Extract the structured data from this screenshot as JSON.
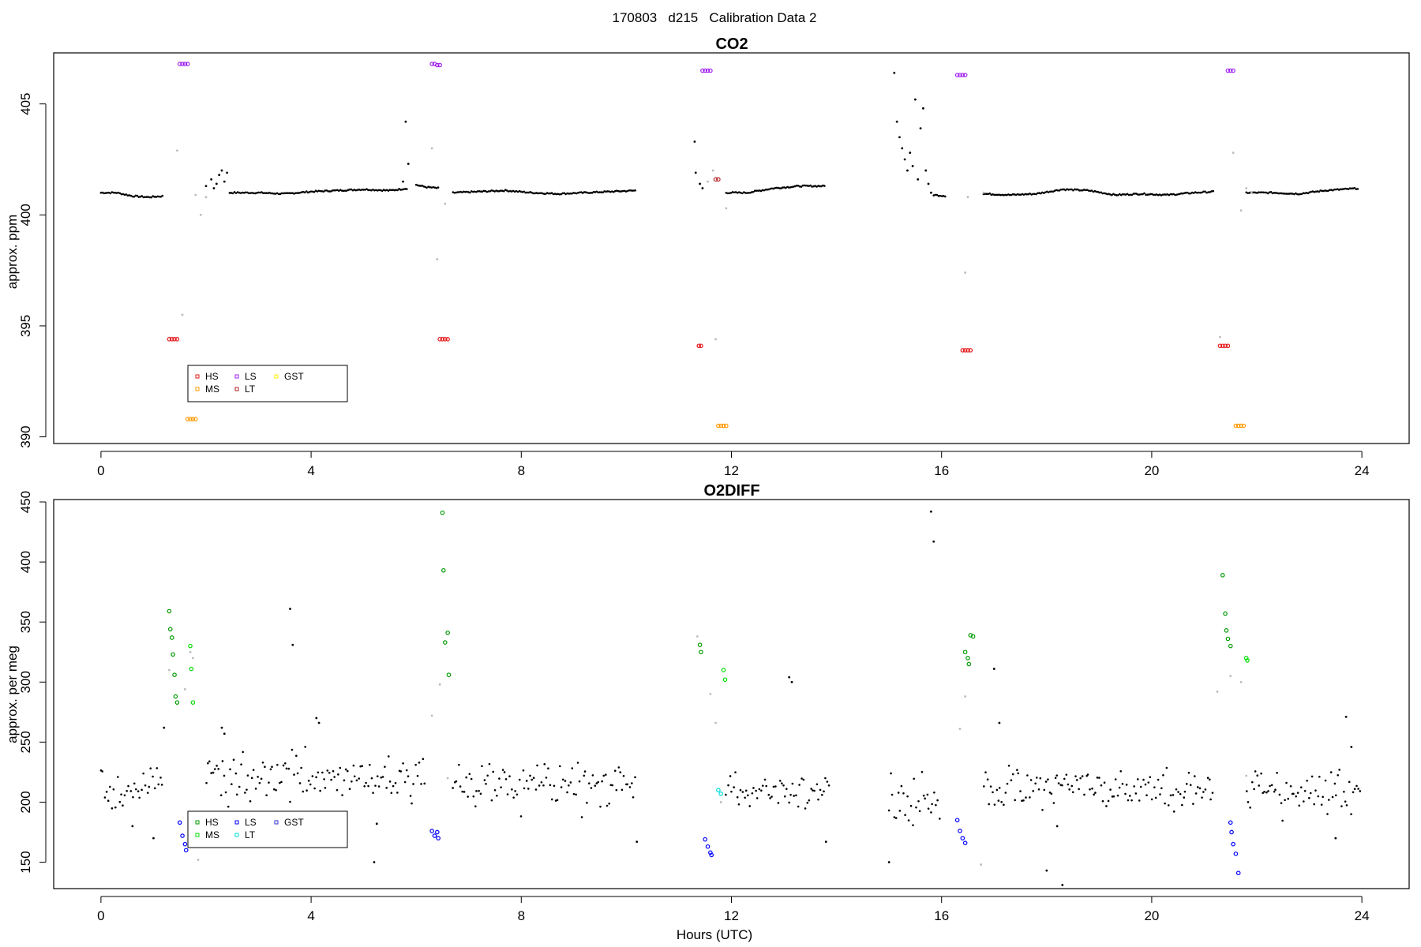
{
  "figure": {
    "title": "170803   d215   Calibration Data 2",
    "xlabel": "Hours (UTC)"
  },
  "colors": {
    "ambient": "#000000",
    "ambient_faint": "#bbbbbb",
    "HS": "#e41a1c",
    "MS": "#ff9900",
    "LS": "#a020f0",
    "LT": "#b22222",
    "GST": "#ffee00",
    "O2_HS": "#009900",
    "O2_MS": "#00dd00",
    "O2_LS": "#0000ff",
    "O2_LT": "#00dddd",
    "O2_GST": "#3333cc"
  },
  "chart_data": [
    {
      "type": "scatter",
      "title": "CO2",
      "xlabel": "",
      "ylabel": "approx. ppm",
      "xlim": [
        -0.9,
        24.9
      ],
      "ylim": [
        389.7,
        407.3
      ],
      "xticks": [
        0,
        4,
        8,
        12,
        16,
        20,
        24
      ],
      "yticks": [
        390,
        395,
        400,
        405
      ],
      "grid": false,
      "legend": {
        "placement": "bottom-left",
        "entries": [
          "HS",
          "LS",
          "GST",
          "MS",
          "LT"
        ]
      },
      "ambient_segments": [
        {
          "x": [
            0.0,
            0.3,
            0.6,
            0.9,
            1.2
          ],
          "y": [
            401.0,
            401.0,
            400.85,
            400.8,
            400.85
          ]
        },
        {
          "x": [
            2.45,
            3.0,
            3.5,
            4.0,
            4.5,
            5.0,
            5.5,
            5.85
          ],
          "y": [
            401.0,
            401.0,
            400.95,
            401.05,
            401.1,
            401.15,
            401.1,
            401.2
          ]
        },
        {
          "x": [
            6.0,
            6.2,
            6.45
          ],
          "y": [
            401.35,
            401.25,
            401.2
          ]
        },
        {
          "x": [
            6.7,
            7.2,
            7.7,
            8.2,
            8.7,
            9.2,
            9.7,
            10.2
          ],
          "y": [
            401.0,
            401.05,
            401.1,
            401.0,
            400.95,
            401.0,
            401.05,
            401.1
          ]
        },
        {
          "x": [
            11.9,
            12.3,
            12.8,
            13.3,
            13.8
          ],
          "y": [
            401.0,
            401.0,
            401.2,
            401.3,
            401.3
          ]
        },
        {
          "x": [
            15.85,
            16.1
          ],
          "y": [
            400.9,
            400.85
          ]
        },
        {
          "x": [
            16.8,
            17.3,
            17.8,
            18.3,
            18.8,
            19.3,
            19.8,
            20.3,
            20.8,
            21.2
          ],
          "y": [
            400.95,
            400.9,
            400.95,
            401.15,
            401.1,
            400.9,
            400.95,
            400.9,
            401.0,
            401.05
          ]
        },
        {
          "x": [
            21.8,
            22.3,
            22.8,
            23.3,
            23.95
          ],
          "y": [
            401.0,
            401.0,
            400.95,
            401.1,
            401.2
          ]
        }
      ],
      "ambient_scatter": {
        "x": [
          2.0,
          2.1,
          2.15,
          2.2,
          2.25,
          2.3,
          2.35,
          2.4,
          5.75,
          5.8,
          5.85,
          11.3,
          11.32,
          11.4,
          11.45,
          15.1,
          15.15,
          15.2,
          15.25,
          15.3,
          15.35,
          15.4,
          15.45,
          15.5,
          15.55,
          15.6,
          15.65,
          15.7,
          15.75,
          15.8
        ],
        "y": [
          401.3,
          401.6,
          401.2,
          401.4,
          401.8,
          402.0,
          401.5,
          401.9,
          401.5,
          404.2,
          402.3,
          403.3,
          401.9,
          401.4,
          401.2,
          406.4,
          404.2,
          403.5,
          403.0,
          402.5,
          402.0,
          402.8,
          402.2,
          405.2,
          401.6,
          403.9,
          404.8,
          402.0,
          401.4,
          401.0
        ]
      },
      "faint_scatter": {
        "x": [
          1.45,
          1.55,
          1.8,
          1.9,
          2.0,
          6.3,
          6.4,
          6.55,
          11.55,
          11.65,
          11.7,
          11.9,
          16.45,
          16.5,
          16.8,
          21.3,
          21.55,
          21.7,
          21.8,
          21.9
        ],
        "y": [
          402.9,
          395.5,
          400.9,
          400.0,
          400.8,
          403.0,
          398.0,
          400.5,
          401.5,
          402.0,
          394.4,
          400.3,
          397.4,
          400.8,
          401.0,
          394.5,
          402.8,
          400.2,
          401.2,
          401.0
        ]
      },
      "calibration": [
        {
          "name": "HS",
          "x": [
            1.3,
            1.35,
            1.4,
            1.45
          ],
          "y": [
            394.4,
            394.4,
            394.4,
            394.4
          ]
        },
        {
          "name": "LS",
          "x": [
            1.5,
            1.55,
            1.6,
            1.65
          ],
          "y": [
            406.8,
            406.8,
            406.8,
            406.8
          ]
        },
        {
          "name": "MS",
          "x": [
            1.65,
            1.7,
            1.75,
            1.8
          ],
          "y": [
            390.8,
            390.8,
            390.8,
            390.8
          ]
        },
        {
          "name": "LS",
          "x": [
            6.3,
            6.35,
            6.4,
            6.45
          ],
          "y": [
            406.8,
            406.8,
            406.75,
            406.75
          ]
        },
        {
          "name": "HS",
          "x": [
            6.45,
            6.5,
            6.55,
            6.6
          ],
          "y": [
            394.4,
            394.4,
            394.4,
            394.4
          ]
        },
        {
          "name": "HS",
          "x": [
            11.38,
            11.42
          ],
          "y": [
            394.1,
            394.1
          ]
        },
        {
          "name": "LS",
          "x": [
            11.45,
            11.5,
            11.55,
            11.6
          ],
          "y": [
            406.5,
            406.5,
            406.5,
            406.5
          ]
        },
        {
          "name": "LT",
          "x": [
            11.7,
            11.75
          ],
          "y": [
            401.6,
            401.6
          ]
        },
        {
          "name": "MS",
          "x": [
            11.75,
            11.8,
            11.85,
            11.9
          ],
          "y": [
            390.5,
            390.5,
            390.5,
            390.5
          ]
        },
        {
          "name": "LS",
          "x": [
            16.3,
            16.35,
            16.4,
            16.45
          ],
          "y": [
            406.3,
            406.3,
            406.3,
            406.3
          ]
        },
        {
          "name": "HS",
          "x": [
            16.4,
            16.45,
            16.5,
            16.55
          ],
          "y": [
            393.9,
            393.9,
            393.9,
            393.9
          ]
        },
        {
          "name": "HS",
          "x": [
            21.3,
            21.35,
            21.4,
            21.45
          ],
          "y": [
            394.1,
            394.1,
            394.1,
            394.1
          ]
        },
        {
          "name": "LS",
          "x": [
            21.45,
            21.5,
            21.55
          ],
          "y": [
            406.5,
            406.5,
            406.5
          ]
        },
        {
          "name": "MS",
          "x": [
            21.6,
            21.65,
            21.7,
            21.75
          ],
          "y": [
            390.5,
            390.5,
            390.5,
            390.5
          ]
        }
      ]
    },
    {
      "type": "scatter",
      "title": "O2DIFF",
      "xlabel": "Hours (UTC)",
      "ylabel": "approx. per meg",
      "xlim": [
        -0.9,
        24.9
      ],
      "ylim": [
        128,
        452
      ],
      "xticks": [
        0,
        4,
        8,
        12,
        16,
        20,
        24
      ],
      "yticks": [
        150,
        200,
        250,
        300,
        350,
        400,
        450
      ],
      "grid": false,
      "legend": {
        "placement": "bottom-left",
        "entries": [
          "HS",
          "LS",
          "GST",
          "MS",
          "LT"
        ]
      },
      "ambient_band_ranges": [
        {
          "x": [
            0.0,
            1.2
          ],
          "center": 210,
          "spread": 20
        },
        {
          "x": [
            2.0,
            6.2
          ],
          "center": 220,
          "spread": 22
        },
        {
          "x": [
            6.7,
            10.2
          ],
          "center": 215,
          "spread": 22
        },
        {
          "x": [
            11.9,
            13.9
          ],
          "center": 212,
          "spread": 18
        },
        {
          "x": [
            15.0,
            16.0
          ],
          "center": 200,
          "spread": 22
        },
        {
          "x": [
            16.8,
            21.2
          ],
          "center": 212,
          "spread": 18
        },
        {
          "x": [
            21.8,
            24.0
          ],
          "center": 210,
          "spread": 20
        }
      ],
      "ambient_scatter": {
        "x": [
          1.2,
          1.0,
          0.6,
          2.3,
          2.35,
          3.6,
          3.65,
          4.1,
          4.15,
          5.2,
          5.25,
          10.2,
          13.1,
          13.15,
          13.8,
          15.0,
          15.8,
          15.85,
          17.0,
          17.1,
          18.0,
          18.2,
          18.3,
          23.7,
          23.8,
          23.5
        ],
        "y": [
          262,
          170,
          180,
          262,
          257,
          361,
          331,
          270,
          266,
          150,
          182,
          167,
          304,
          300,
          167,
          150,
          442,
          417,
          311,
          266,
          143,
          180,
          131,
          271,
          246,
          170
        ]
      },
      "faint_scatter": {
        "x": [
          1.3,
          1.6,
          1.7,
          1.75,
          1.85,
          6.3,
          6.45,
          6.6,
          11.35,
          11.6,
          11.7,
          11.8,
          16.35,
          16.45,
          16.75,
          21.25,
          21.5,
          21.7,
          21.8
        ],
        "y": [
          310,
          294,
          325,
          320,
          152,
          272,
          298,
          220,
          338,
          290,
          266,
          200,
          261,
          288,
          148,
          292,
          305,
          300,
          222
        ]
      },
      "calibration": [
        {
          "name": "HS",
          "x": [
            1.3,
            1.32,
            1.35,
            1.37,
            1.4,
            1.42
          ],
          "y": [
            359,
            344,
            337,
            323,
            306,
            288
          ]
        },
        {
          "name": "HS",
          "x": [
            1.45
          ],
          "y": [
            283
          ]
        },
        {
          "name": "LS",
          "x": [
            1.5,
            1.55,
            1.6,
            1.62
          ],
          "y": [
            183,
            172,
            165,
            160
          ]
        },
        {
          "name": "MS",
          "x": [
            1.7,
            1.72,
            1.75
          ],
          "y": [
            330,
            311,
            283
          ]
        },
        {
          "name": "LS",
          "x": [
            6.3,
            6.35,
            6.4,
            6.42
          ],
          "y": [
            176,
            172,
            175,
            170
          ]
        },
        {
          "name": "HS",
          "x": [
            6.5,
            6.52,
            6.55,
            6.6,
            6.62
          ],
          "y": [
            441,
            393,
            333,
            341,
            306
          ]
        },
        {
          "name": "HS",
          "x": [
            11.4,
            11.42
          ],
          "y": [
            331,
            325
          ]
        },
        {
          "name": "LS",
          "x": [
            11.5,
            11.55,
            11.6,
            11.62
          ],
          "y": [
            169,
            163,
            158,
            156
          ]
        },
        {
          "name": "LT",
          "x": [
            11.75,
            11.8
          ],
          "y": [
            210,
            207
          ]
        },
        {
          "name": "MS",
          "x": [
            11.85,
            11.88
          ],
          "y": [
            310,
            302
          ]
        },
        {
          "name": "LS",
          "x": [
            16.3,
            16.35,
            16.4,
            16.45
          ],
          "y": [
            185,
            176,
            170,
            166
          ]
        },
        {
          "name": "HS",
          "x": [
            16.45,
            16.5,
            16.52,
            16.55,
            16.6
          ],
          "y": [
            325,
            320,
            315,
            339,
            338
          ]
        },
        {
          "name": "HS",
          "x": [
            21.35,
            21.4,
            21.42,
            21.45,
            21.5
          ],
          "y": [
            389,
            357,
            343,
            336,
            330
          ]
        },
        {
          "name": "LS",
          "x": [
            21.5,
            21.52,
            21.55,
            21.6,
            21.65
          ],
          "y": [
            183,
            175,
            165,
            157,
            141
          ]
        },
        {
          "name": "MS",
          "x": [
            21.8,
            21.82
          ],
          "y": [
            320,
            318
          ]
        }
      ]
    }
  ]
}
